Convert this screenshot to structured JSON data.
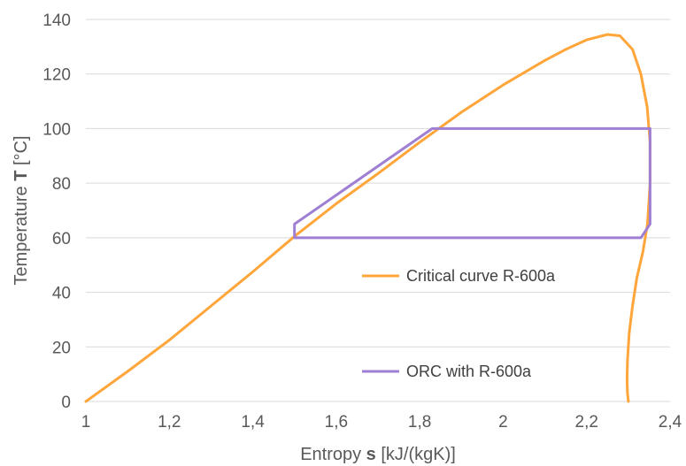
{
  "chart_data": {
    "type": "line",
    "xlabel": {
      "prefix": "Entropy ",
      "symbol": "s",
      "suffix": " [kJ/(kgK)]"
    },
    "ylabel": {
      "prefix": "Temperature ",
      "symbol": "T",
      "suffix": " [°C]"
    },
    "xlim": [
      1,
      2.4
    ],
    "ylim": [
      0,
      140
    ],
    "xticks": [
      1,
      1.2,
      1.4,
      1.6,
      1.8,
      2,
      2.2,
      2.4
    ],
    "xtick_labels": [
      "1",
      "1,2",
      "1,4",
      "1,6",
      "1,8",
      "2",
      "2,2",
      "2,4"
    ],
    "yticks": [
      0,
      20,
      40,
      60,
      80,
      100,
      120,
      140
    ],
    "ytick_labels": [
      "0",
      "20",
      "40",
      "60",
      "80",
      "100",
      "120",
      "140"
    ],
    "grid": {
      "x": false,
      "y": true
    },
    "legend_position": "inside-right",
    "series": [
      {
        "name": "Critical curve R-600a",
        "color": "#FFA53A",
        "x": [
          1.0,
          1.1,
          1.2,
          1.3,
          1.4,
          1.5,
          1.6,
          1.7,
          1.8,
          1.9,
          2.0,
          2.1,
          2.15,
          2.2,
          2.25,
          2.28,
          2.31,
          2.33,
          2.345,
          2.352,
          2.352,
          2.346,
          2.335,
          2.32,
          2.31,
          2.302,
          2.298,
          2.297,
          2.298,
          2.3
        ],
        "y": [
          0,
          11,
          22.5,
          35,
          47.5,
          60.5,
          72.5,
          83.5,
          95,
          106,
          116,
          125,
          129,
          132.5,
          134.5,
          134,
          129,
          120,
          108,
          95,
          80,
          65,
          55,
          45,
          35,
          25,
          15,
          8,
          3,
          0
        ]
      },
      {
        "name": "ORC with R-600a",
        "color": "#9F7FD4",
        "x": [
          1.5,
          2.33,
          2.352,
          2.352,
          1.83,
          1.5,
          1.5
        ],
        "y": [
          60,
          60,
          65,
          100,
          100,
          65,
          60
        ]
      }
    ]
  }
}
